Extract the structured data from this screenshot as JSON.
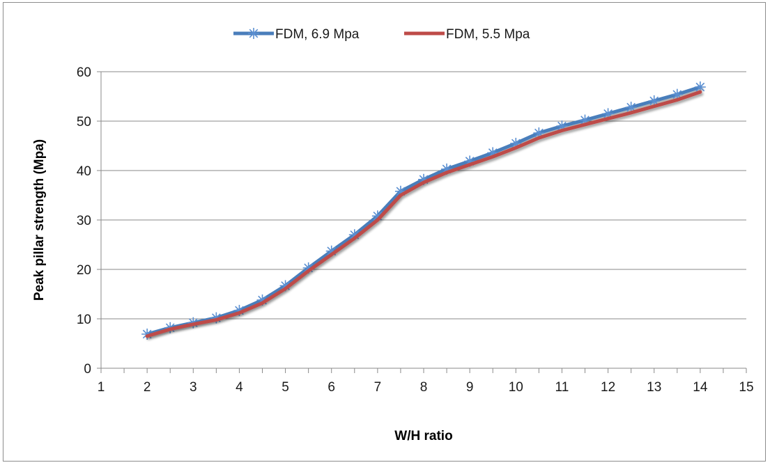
{
  "chart_data": {
    "type": "line",
    "xlabel": "W/H ratio",
    "ylabel": "Peak pillar strength (Mpa)",
    "xlim": [
      1,
      15
    ],
    "ylim": [
      0,
      60
    ],
    "x_ticks": [
      1,
      2,
      3,
      4,
      5,
      6,
      7,
      8,
      9,
      10,
      11,
      12,
      13,
      14,
      15
    ],
    "y_ticks": [
      0,
      10,
      20,
      30,
      40,
      50,
      60
    ],
    "grid": "horizontal",
    "legend_position": "top",
    "x": [
      2,
      2.5,
      3,
      3.5,
      4,
      4.5,
      5,
      5.5,
      6,
      6.5,
      7,
      7.5,
      8,
      8.5,
      9,
      9.5,
      10,
      10.5,
      11,
      11.5,
      12,
      12.5,
      13,
      13.5,
      14
    ],
    "series": [
      {
        "name": "FDM, 6.9 Mpa",
        "color": "#4a7ebb",
        "marker": "asterisk",
        "values": [
          6.9,
          8.2,
          9.2,
          10.2,
          11.7,
          13.8,
          16.7,
          20.3,
          23.7,
          27.0,
          30.8,
          35.8,
          38.2,
          40.3,
          41.9,
          43.6,
          45.5,
          47.6,
          49.0,
          50.2,
          51.5,
          52.8,
          54.1,
          55.4,
          56.9
        ]
      },
      {
        "name": "FDM, 5.5 Mpa",
        "color": "#be4b48",
        "marker": "none",
        "values": [
          6.5,
          7.9,
          8.9,
          9.8,
          11.2,
          13.2,
          16.1,
          19.7,
          23.0,
          26.3,
          30.0,
          35.0,
          37.6,
          39.6,
          41.2,
          42.8,
          44.6,
          46.6,
          48.1,
          49.3,
          50.5,
          51.7,
          53.0,
          54.3,
          55.9
        ]
      }
    ]
  }
}
